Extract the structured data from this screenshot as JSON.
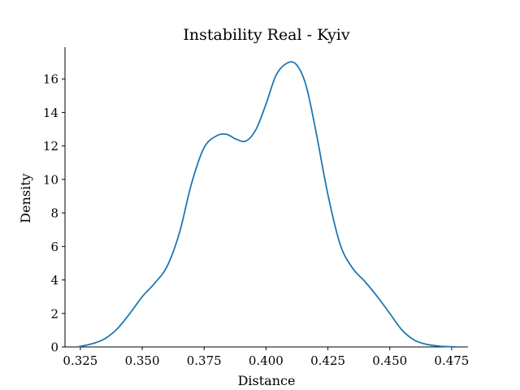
{
  "chart_data": {
    "type": "line",
    "title": "Instability Real - Kyiv",
    "xlabel": "Distance",
    "ylabel": "Density",
    "xlim": [
      0.3188,
      0.4816
    ],
    "ylim": [
      0,
      17.9
    ],
    "xticks": [
      0.325,
      0.35,
      0.375,
      0.4,
      0.425,
      0.45,
      0.475
    ],
    "xtick_labels": [
      "0.325",
      "0.350",
      "0.375",
      "0.400",
      "0.425",
      "0.450",
      "0.475"
    ],
    "yticks": [
      0,
      2,
      4,
      6,
      8,
      10,
      12,
      14,
      16
    ],
    "ytick_labels": [
      "0",
      "2",
      "4",
      "6",
      "8",
      "10",
      "12",
      "14",
      "16"
    ],
    "grid": false,
    "series": [
      {
        "color": "#1f77b4",
        "x": [
          0.3238,
          0.33,
          0.335,
          0.34,
          0.345,
          0.35,
          0.355,
          0.36,
          0.365,
          0.37,
          0.375,
          0.38,
          0.384,
          0.388,
          0.392,
          0.396,
          0.4,
          0.404,
          0.408,
          0.412,
          0.416,
          0.42,
          0.425,
          0.43,
          0.435,
          0.44,
          0.445,
          0.45,
          0.455,
          0.46,
          0.465,
          0.47,
          0.4766
        ],
        "y": [
          0.0,
          0.2,
          0.5,
          1.1,
          2.0,
          3.0,
          3.8,
          4.8,
          6.8,
          9.8,
          11.9,
          12.6,
          12.7,
          12.4,
          12.3,
          13.0,
          14.5,
          16.2,
          16.9,
          16.9,
          15.7,
          13.0,
          9.1,
          6.1,
          4.7,
          3.9,
          3.0,
          2.0,
          1.0,
          0.4,
          0.15,
          0.05,
          0.0
        ]
      }
    ]
  }
}
